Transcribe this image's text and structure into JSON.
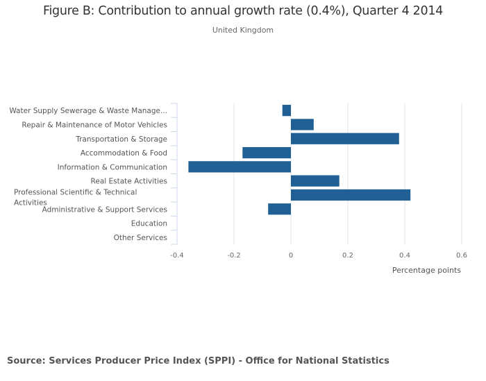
{
  "chart_data": {
    "type": "bar",
    "orientation": "horizontal",
    "title": "Figure B: Contribution to annual growth rate (0.4%), Quarter 4 2014",
    "subtitle": "United Kingdom",
    "xlabel": "Percentage points",
    "ylabel": "",
    "xlim": [
      -0.4,
      0.6
    ],
    "xticks": [
      -0.4,
      -0.2,
      0,
      0.2,
      0.4,
      0.6
    ],
    "xtick_labels": [
      "-0.4",
      "-0.2",
      "0",
      "0.2",
      "0.4",
      "0.6"
    ],
    "grid": true,
    "bar_color": "#206095",
    "categories": [
      "Water Supply Sewerage & Waste Manage...",
      "Repair & Maintenance of Motor Vehicles",
      "Transportation & Storage",
      "Accommodation & Food",
      "Information & Communication",
      "Real Estate Activities",
      "Professional Scientific & Technical Activities",
      "Administrative & Support Services",
      "Education",
      "Other Services"
    ],
    "category_label_lines": [
      [
        "Water Supply Sewerage & Waste Manage..."
      ],
      [
        "Repair & Maintenance of Motor Vehicles"
      ],
      [
        "Transportation & Storage"
      ],
      [
        "Accommodation & Food"
      ],
      [
        "Information & Communication"
      ],
      [
        "Real Estate Activities"
      ],
      [
        "Professional Scientific & Technical",
        "Activities"
      ],
      [
        "Administrative & Support Services"
      ],
      [
        "Education"
      ],
      [
        "Other Services"
      ]
    ],
    "values": [
      -0.03,
      0.08,
      0.38,
      -0.17,
      -0.36,
      0.17,
      0.42,
      -0.08,
      0,
      0
    ]
  },
  "source": "Source: Services Producer Price Index (SPPI) - Office for National Statistics"
}
